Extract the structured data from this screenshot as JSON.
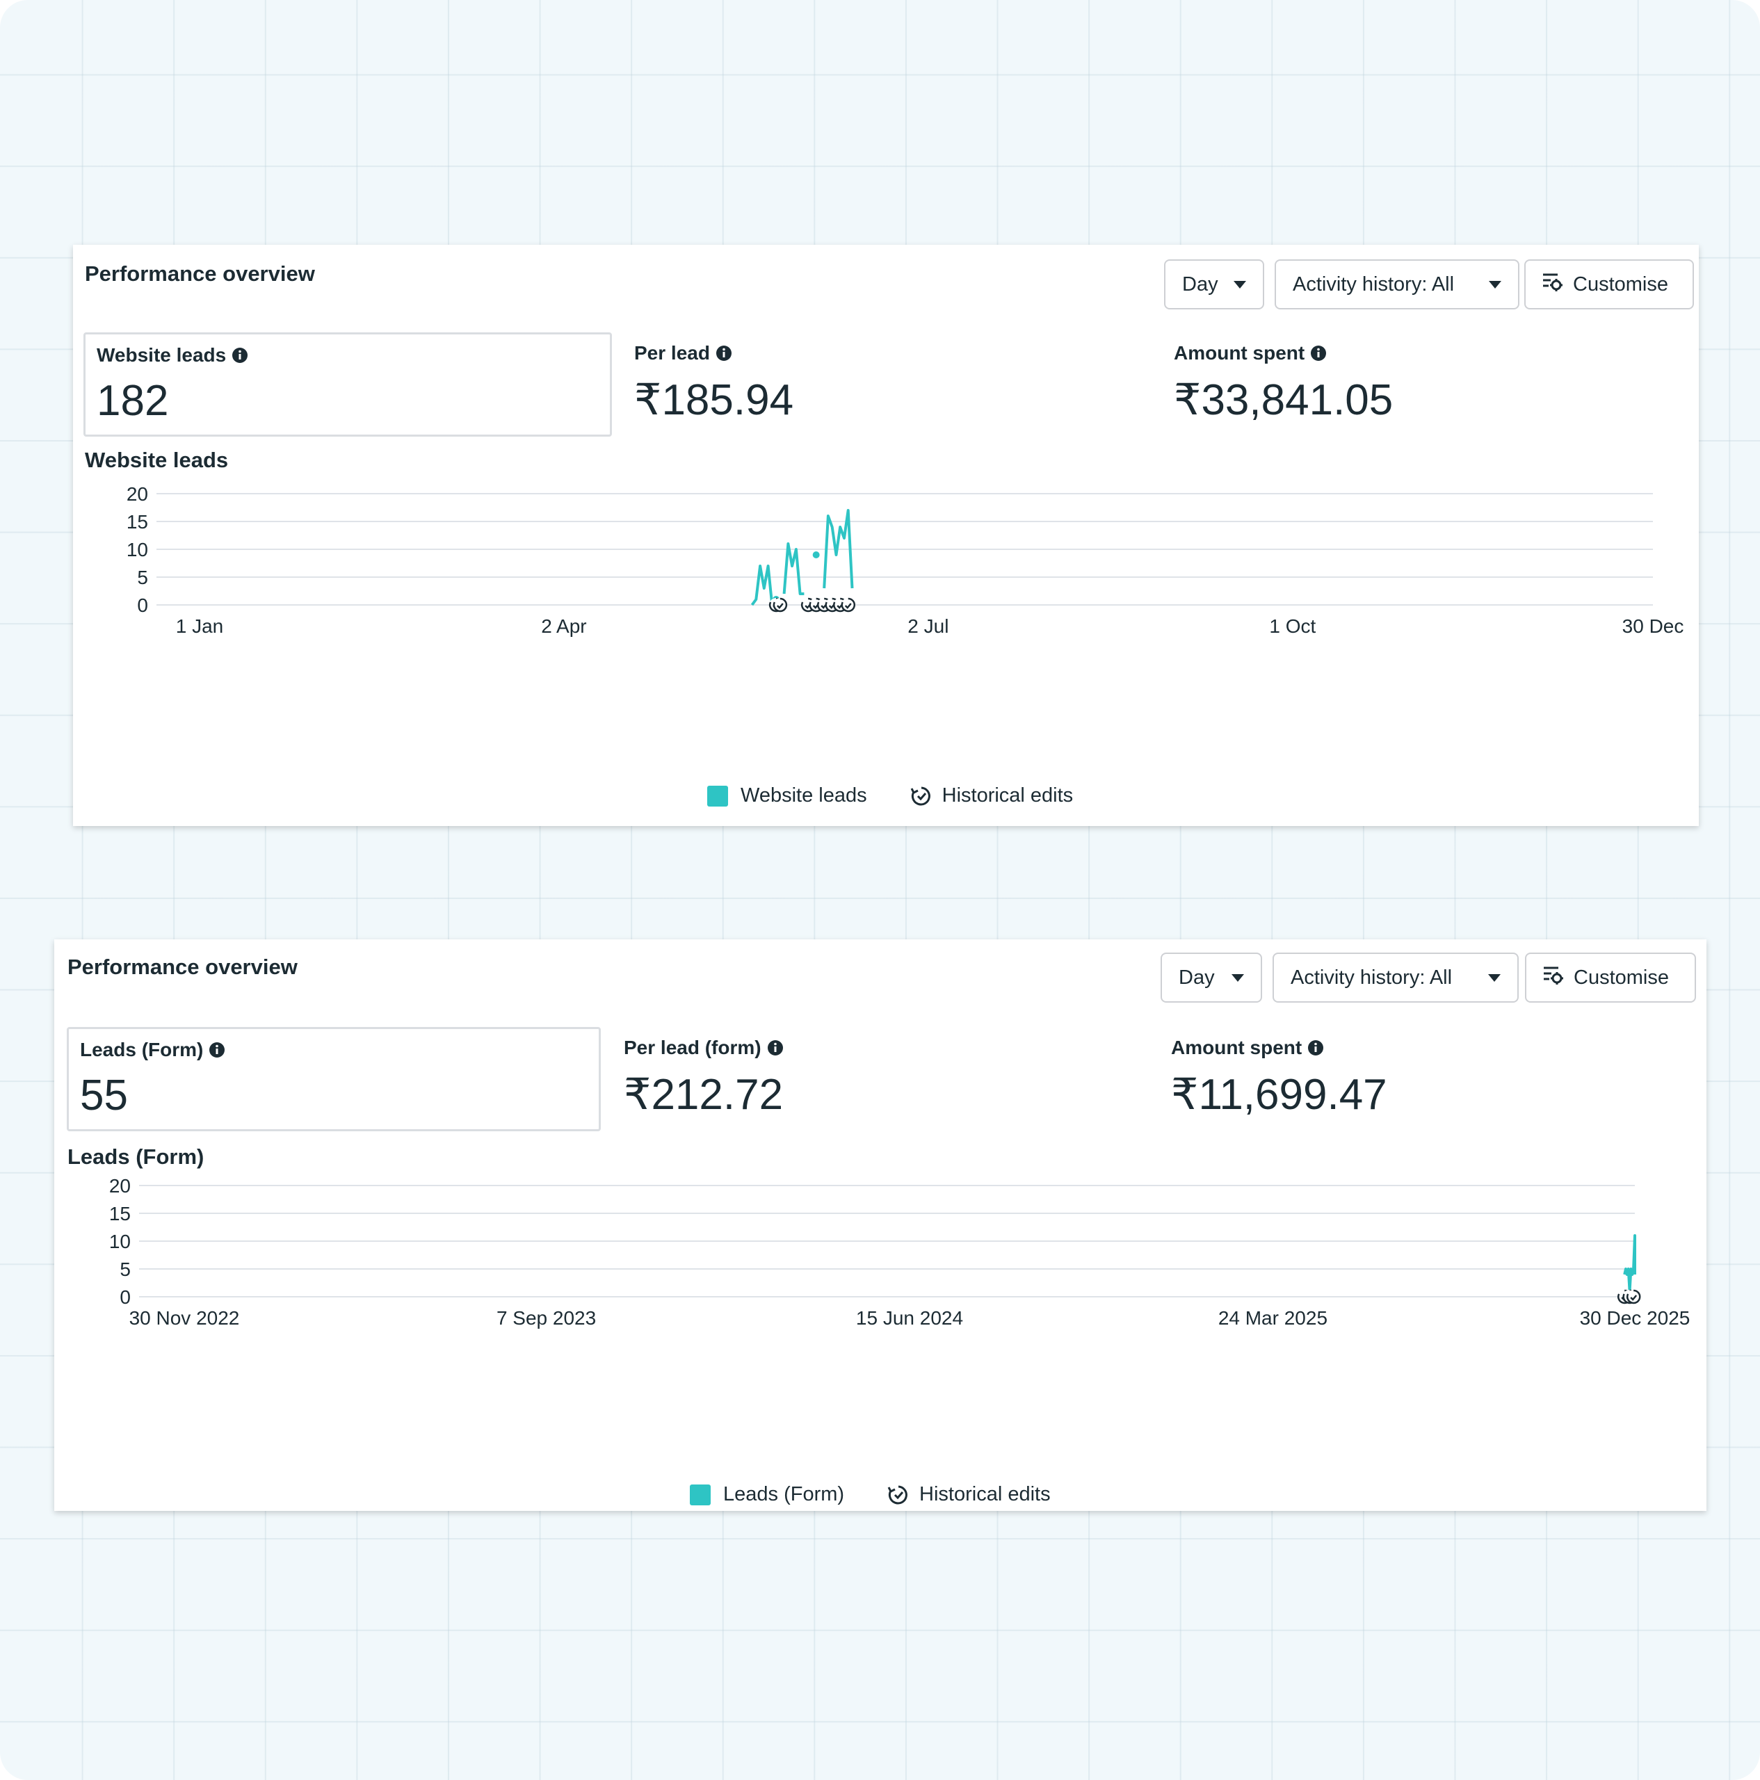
{
  "colors": {
    "series": "#2ec4c4",
    "grid": "#dfe3e8",
    "text": "#1c2b33"
  },
  "cards": [
    {
      "title": "Performance overview",
      "controls": {
        "day": "Day",
        "activity": "Activity history: All",
        "customise": "Customise"
      },
      "metrics": [
        {
          "label": "Website leads",
          "value": "182",
          "selected": true
        },
        {
          "label": "Per lead",
          "value": "₹185.94",
          "selected": false
        },
        {
          "label": "Amount spent",
          "value": "₹33,841.05",
          "selected": false
        }
      ],
      "chart_title": "Website leads",
      "legend": {
        "series": "Website leads",
        "edits": "Historical edits"
      },
      "icons": [
        "info-icon",
        "caret-down-icon",
        "customise-icon",
        "historical-edits-icon"
      ]
    },
    {
      "title": "Performance overview",
      "controls": {
        "day": "Day",
        "activity": "Activity history: All",
        "customise": "Customise"
      },
      "metrics": [
        {
          "label": "Leads (Form)",
          "value": "55",
          "selected": true
        },
        {
          "label": "Per lead (form)",
          "value": "₹212.72",
          "selected": false
        },
        {
          "label": "Amount spent",
          "value": "₹11,699.47",
          "selected": false
        }
      ],
      "chart_title": "Leads (Form)",
      "legend": {
        "series": "Leads (Form)",
        "edits": "Historical edits"
      },
      "icons": [
        "info-icon",
        "caret-down-icon",
        "customise-icon",
        "historical-edits-icon"
      ]
    }
  ],
  "chart_data": [
    {
      "type": "line",
      "title": "Website leads",
      "xlabel": "",
      "ylabel": "",
      "x_range": [
        "1 Jan",
        "30 Dec"
      ],
      "x_ticks": [
        "1 Jan",
        "2 Apr",
        "2 Jul",
        "1 Oct",
        "30 Dec"
      ],
      "ylim": [
        0,
        20
      ],
      "y_ticks": [
        0,
        5,
        10,
        15,
        20
      ],
      "grid": true,
      "legend": "bottom-center",
      "series": [
        {
          "name": "Website leads",
          "points": [
            {
              "x": "19 May",
              "y": 0
            },
            {
              "x": "20 May",
              "y": 1
            },
            {
              "x": "21 May",
              "y": 7
            },
            {
              "x": "22 May",
              "y": 3
            },
            {
              "x": "23 May",
              "y": 7
            },
            {
              "x": "24 May",
              "y": 0
            },
            {
              "x": "25 May",
              "y": 1,
              "isolated": true
            },
            {
              "x": "27 May",
              "y": 2
            },
            {
              "x": "28 May",
              "y": 11
            },
            {
              "x": "29 May",
              "y": 7
            },
            {
              "x": "30 May",
              "y": 10
            },
            {
              "x": "31 May",
              "y": 2
            },
            {
              "x": "1 Jun",
              "y": 2
            },
            {
              "x": "4 Jun",
              "y": 9,
              "isolated": true
            },
            {
              "x": "6 Jun",
              "y": 3
            },
            {
              "x": "7 Jun",
              "y": 16
            },
            {
              "x": "8 Jun",
              "y": 14
            },
            {
              "x": "9 Jun",
              "y": 9
            },
            {
              "x": "10 Jun",
              "y": 14
            },
            {
              "x": "11 Jun",
              "y": 12
            },
            {
              "x": "12 Jun",
              "y": 17
            },
            {
              "x": "13 Jun",
              "y": 3
            }
          ]
        }
      ],
      "historical_edits": [
        "25 May",
        "26 May",
        "2 Jun",
        "4 Jun",
        "6 Jun",
        "8 Jun",
        "10 Jun",
        "12 Jun"
      ]
    },
    {
      "type": "line",
      "title": "Leads (Form)",
      "xlabel": "",
      "ylabel": "",
      "x_range": [
        "30 Nov 2022",
        "30 Dec 2025"
      ],
      "x_ticks": [
        "30 Nov 2022",
        "7 Sep 2023",
        "15 Jun 2024",
        "24 Mar 2025",
        "30 Dec 2025"
      ],
      "ylim": [
        0,
        20
      ],
      "y_ticks": [
        0,
        5,
        10,
        15,
        20
      ],
      "grid": true,
      "legend": "bottom-center",
      "series": [
        {
          "name": "Leads (Form)",
          "points": [
            {
              "x": "22 Dec 2025",
              "y": 4
            },
            {
              "x": "23 Dec 2025",
              "y": 5
            },
            {
              "x": "24 Dec 2025",
              "y": 4
            },
            {
              "x": "25 Dec 2025",
              "y": 5
            },
            {
              "x": "26 Dec 2025",
              "y": 1
            },
            {
              "x": "27 Dec 2025",
              "y": 5
            },
            {
              "x": "28 Dec 2025",
              "y": 4
            },
            {
              "x": "29 Dec 2025",
              "y": 5
            },
            {
              "x": "30 Dec 2025",
              "y": 11
            },
            {
              "x": "30 Dec 2025",
              "y": 4
            }
          ]
        }
      ],
      "historical_edits": [
        "22 Dec 2025",
        "26 Dec 2025",
        "29 Dec 2025"
      ]
    }
  ]
}
